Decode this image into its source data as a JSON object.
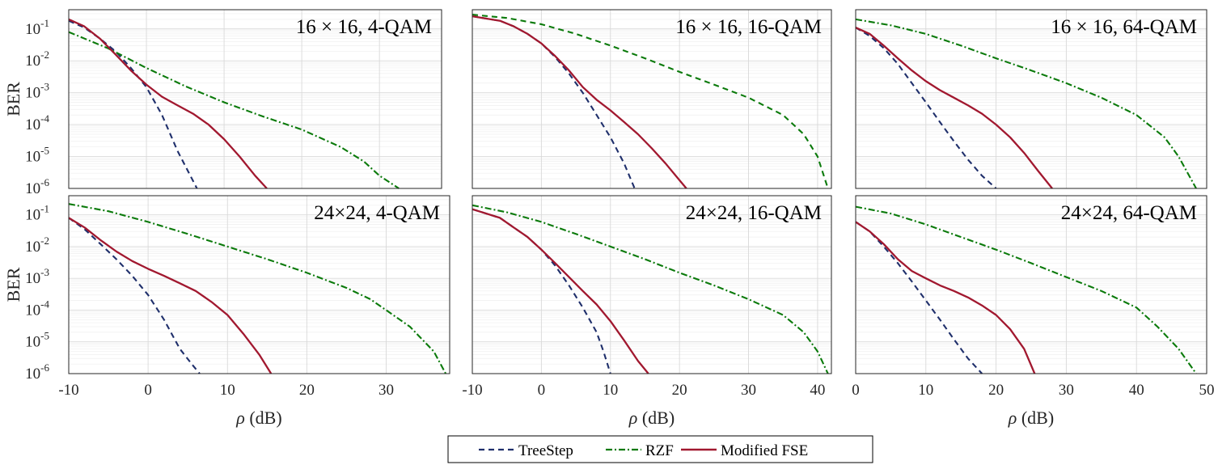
{
  "legend": {
    "location": "bottom-center",
    "entries": [
      "TreeStep",
      "RZF",
      "Modified FSE"
    ]
  },
  "colors": {
    "TreeStep": "#1f2f6b",
    "RZF": "#0b7a0b",
    "Modified FSE": "#a1182f",
    "grid": "#d9d9d9"
  },
  "chart_data": [
    {
      "type": "line",
      "title": "16 × 16, 4-QAM",
      "xlabel": "",
      "ylabel": "BER",
      "xlim": [
        -10,
        38
      ],
      "ylim": [
        1e-06,
        0.4
      ],
      "yscale": "log",
      "grid": true,
      "series": [
        {
          "name": "TreeStep",
          "style": "dashed",
          "x": [
            -10,
            -8,
            -6,
            -4,
            -2,
            0,
            2,
            4,
            6.5
          ],
          "y": [
            0.18,
            0.11,
            0.05,
            0.02,
            0.006,
            0.0015,
            0.0002,
            1.5e-05,
            1e-06
          ]
        },
        {
          "name": "RZF",
          "style": "dashdot",
          "x": [
            -10,
            -5,
            0,
            5,
            10,
            15,
            20,
            25,
            28,
            30,
            32.5
          ],
          "y": [
            0.08,
            0.025,
            0.006,
            0.0016,
            0.0005,
            0.00018,
            7e-05,
            2e-05,
            7e-06,
            2.5e-06,
            1e-06
          ]
        },
        {
          "name": "Modified FSE",
          "style": "solid",
          "x": [
            -10,
            -8,
            -6,
            -4,
            -2,
            0,
            2,
            4,
            6,
            8,
            10,
            12,
            14,
            15.5
          ],
          "y": [
            0.2,
            0.12,
            0.05,
            0.016,
            0.005,
            0.0018,
            0.00075,
            0.0004,
            0.00022,
            0.0001,
            3.5e-05,
            1e-05,
            2.5e-06,
            1e-06
          ]
        }
      ]
    },
    {
      "type": "line",
      "title": "16 × 16, 16-QAM",
      "xlabel": "",
      "ylabel": "",
      "xlim": [
        -10,
        42
      ],
      "ylim": [
        1e-06,
        0.4
      ],
      "yscale": "log",
      "grid": true,
      "series": [
        {
          "name": "TreeStep",
          "style": "dashed",
          "x": [
            -10,
            -6,
            -4,
            -2,
            0,
            2,
            4,
            6,
            8,
            10,
            12,
            13.5
          ],
          "y": [
            0.25,
            0.18,
            0.12,
            0.07,
            0.035,
            0.013,
            0.004,
            0.001,
            0.0002,
            4e-05,
            6e-06,
            1e-06
          ]
        },
        {
          "name": "RZF",
          "style": "dashed",
          "x": [
            -10,
            -5,
            0,
            5,
            10,
            15,
            20,
            25,
            30,
            35,
            38,
            40,
            41.5
          ],
          "y": [
            0.28,
            0.22,
            0.14,
            0.07,
            0.03,
            0.012,
            0.0045,
            0.0018,
            0.0007,
            0.0002,
            5e-05,
            1e-05,
            1e-06
          ]
        },
        {
          "name": "Modified FSE",
          "style": "solid",
          "x": [
            -10,
            -6,
            -4,
            -2,
            0,
            2,
            4,
            6,
            8,
            10,
            12,
            14,
            16,
            18,
            20,
            21
          ],
          "y": [
            0.25,
            0.18,
            0.12,
            0.07,
            0.035,
            0.014,
            0.005,
            0.0015,
            0.0006,
            0.00028,
            0.00012,
            5e-05,
            1.8e-05,
            6e-06,
            1.8e-06,
            1e-06
          ]
        }
      ]
    },
    {
      "type": "line",
      "title": "16 × 16, 64-QAM",
      "xlabel": "",
      "ylabel": "",
      "xlim": [
        0,
        50
      ],
      "ylim": [
        1e-06,
        0.4
      ],
      "yscale": "log",
      "grid": true,
      "series": [
        {
          "name": "TreeStep",
          "style": "dashed",
          "x": [
            0,
            2,
            4,
            6,
            8,
            10,
            12,
            14,
            16,
            18,
            20
          ],
          "y": [
            0.11,
            0.06,
            0.025,
            0.008,
            0.002,
            0.0005,
            0.00012,
            3e-05,
            8e-06,
            2.5e-06,
            1e-06
          ]
        },
        {
          "name": "RZF",
          "style": "dashdot",
          "x": [
            0,
            5,
            10,
            15,
            20,
            25,
            30,
            35,
            40,
            44,
            46,
            48.5
          ],
          "y": [
            0.2,
            0.13,
            0.07,
            0.03,
            0.012,
            0.005,
            0.002,
            0.0007,
            0.0002,
            4e-05,
            1e-05,
            1e-06
          ]
        },
        {
          "name": "Modified FSE",
          "style": "solid",
          "x": [
            0,
            2,
            4,
            6,
            8,
            10,
            12,
            14,
            16,
            18,
            20,
            22,
            24,
            26,
            28
          ],
          "y": [
            0.11,
            0.07,
            0.03,
            0.012,
            0.005,
            0.0023,
            0.0012,
            0.0007,
            0.0004,
            0.00022,
            0.0001,
            4e-05,
            1.3e-05,
            3.5e-06,
            1e-06
          ]
        }
      ]
    },
    {
      "type": "line",
      "title": "24×24, 4-QAM",
      "xlabel": "ρ (dB)",
      "ylabel": "BER",
      "xlim": [
        -10,
        38
      ],
      "ylim": [
        1e-06,
        0.4
      ],
      "yscale": "log",
      "grid": true,
      "series": [
        {
          "name": "TreeStep",
          "style": "dashed",
          "x": [
            -10,
            -8,
            -6,
            -4,
            -2,
            0,
            2,
            4,
            5.5,
            6.5
          ],
          "y": [
            0.08,
            0.035,
            0.012,
            0.004,
            0.0012,
            0.0003,
            5e-05,
            6e-06,
            2e-06,
            1e-06
          ]
        },
        {
          "name": "RZF",
          "style": "dashdot",
          "x": [
            -10,
            -5,
            0,
            5,
            10,
            15,
            20,
            25,
            28,
            30,
            33,
            36,
            37.5
          ],
          "y": [
            0.22,
            0.13,
            0.06,
            0.025,
            0.01,
            0.004,
            0.0015,
            0.0005,
            0.00022,
            0.0001,
            3e-05,
            5e-06,
            1e-06
          ]
        },
        {
          "name": "Modified FSE",
          "style": "solid",
          "x": [
            -10,
            -8,
            -6,
            -4,
            -2,
            0,
            2,
            4,
            6,
            8,
            10,
            12,
            14,
            15.5
          ],
          "y": [
            0.08,
            0.04,
            0.016,
            0.007,
            0.0035,
            0.002,
            0.0012,
            0.0007,
            0.0004,
            0.00018,
            7e-05,
            1.8e-05,
            4e-06,
            1e-06
          ]
        }
      ]
    },
    {
      "type": "line",
      "title": "24×24, 16-QAM",
      "xlabel": "ρ (dB)",
      "ylabel": "",
      "xlim": [
        -10,
        42
      ],
      "ylim": [
        1e-06,
        0.4
      ],
      "yscale": "log",
      "grid": true,
      "series": [
        {
          "name": "TreeStep",
          "style": "dashed",
          "x": [
            -10,
            -6,
            -4,
            -2,
            0,
            2,
            4,
            6,
            8,
            9,
            10
          ],
          "y": [
            0.15,
            0.08,
            0.04,
            0.02,
            0.008,
            0.0025,
            0.0006,
            0.00012,
            2e-05,
            5e-06,
            1e-06
          ]
        },
        {
          "name": "RZF",
          "style": "dashdot",
          "x": [
            -10,
            -5,
            0,
            5,
            10,
            15,
            20,
            25,
            30,
            35,
            38,
            40,
            41.5
          ],
          "y": [
            0.2,
            0.12,
            0.06,
            0.025,
            0.01,
            0.004,
            0.0015,
            0.0006,
            0.00022,
            7e-05,
            2e-05,
            5e-06,
            1e-06
          ]
        },
        {
          "name": "Modified FSE",
          "style": "solid",
          "x": [
            -10,
            -6,
            -4,
            -2,
            0,
            2,
            4,
            6,
            8,
            10,
            12,
            14,
            15.5
          ],
          "y": [
            0.15,
            0.08,
            0.04,
            0.02,
            0.008,
            0.003,
            0.0011,
            0.0004,
            0.00015,
            4.5e-05,
            1.1e-05,
            2.5e-06,
            1e-06
          ]
        }
      ]
    },
    {
      "type": "line",
      "title": "24×24, 64-QAM",
      "xlabel": "ρ (dB)",
      "ylabel": "",
      "xlim": [
        0,
        50
      ],
      "ylim": [
        1e-06,
        0.4
      ],
      "yscale": "log",
      "grid": true,
      "series": [
        {
          "name": "TreeStep",
          "style": "dashed",
          "x": [
            0,
            2,
            4,
            6,
            8,
            10,
            12,
            14,
            16,
            18
          ],
          "y": [
            0.06,
            0.03,
            0.01,
            0.003,
            0.0008,
            0.0002,
            5e-05,
            1.2e-05,
            3e-06,
            1e-06
          ]
        },
        {
          "name": "RZF",
          "style": "dashdot",
          "x": [
            0,
            5,
            10,
            15,
            20,
            25,
            30,
            35,
            40,
            43,
            46,
            48.5
          ],
          "y": [
            0.18,
            0.11,
            0.05,
            0.02,
            0.008,
            0.003,
            0.0011,
            0.0004,
            0.00012,
            3e-05,
            6e-06,
            1e-06
          ]
        },
        {
          "name": "Modified FSE",
          "style": "solid",
          "x": [
            0,
            2,
            4,
            6,
            8,
            10,
            12,
            14,
            16,
            18,
            20,
            22,
            24,
            25.5
          ],
          "y": [
            0.06,
            0.03,
            0.012,
            0.004,
            0.0017,
            0.001,
            0.0006,
            0.0004,
            0.00025,
            0.00014,
            7e-05,
            2.5e-05,
            6e-06,
            1e-06
          ]
        }
      ]
    }
  ]
}
